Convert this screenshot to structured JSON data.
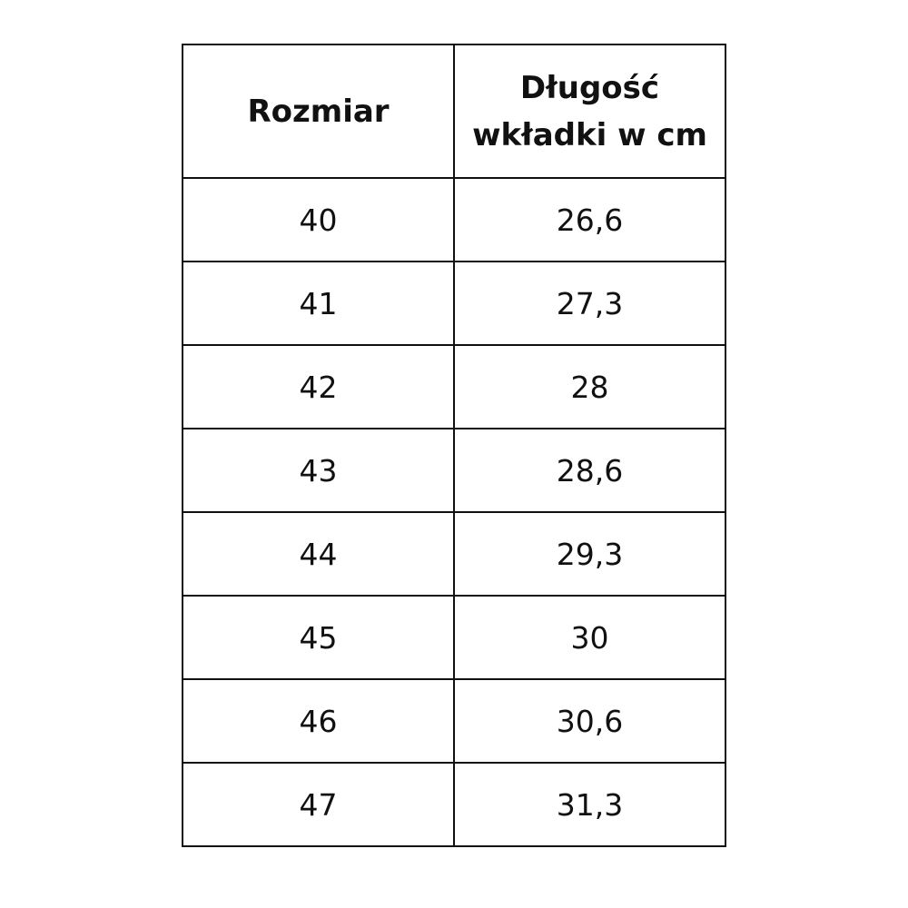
{
  "table": {
    "headers": [
      "Rozmiar",
      "Długość wkładki w cm"
    ],
    "header_line1": "Długość",
    "header_line2": "wkładki w cm",
    "rows": [
      [
        "40",
        "26,6"
      ],
      [
        "41",
        "27,3"
      ],
      [
        "42",
        "28"
      ],
      [
        "43",
        "28,6"
      ],
      [
        "44",
        "29,3"
      ],
      [
        "45",
        "30"
      ],
      [
        "46",
        "30,6"
      ],
      [
        "47",
        "31,3"
      ]
    ]
  }
}
